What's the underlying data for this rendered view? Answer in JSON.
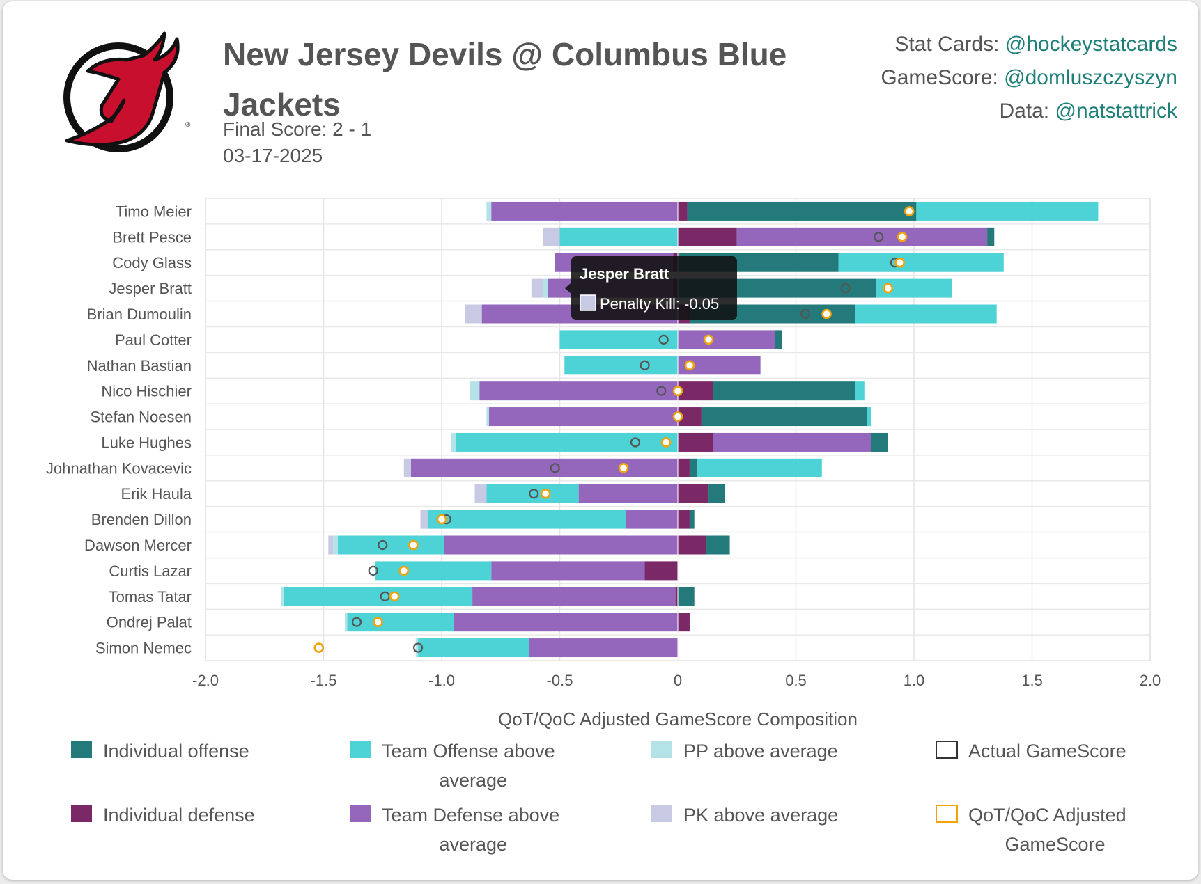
{
  "header": {
    "title": "New Jersey Devils @ Columbus Blue Jackets",
    "final_score": "Final Score: 2 - 1",
    "date": "03-17-2025"
  },
  "credits": [
    {
      "label": "Stat Cards: ",
      "handle": "@hockeystatcards"
    },
    {
      "label": "GameScore: ",
      "handle": "@domluszczyszyn"
    },
    {
      "label": "Data: ",
      "handle": "@natstattrick"
    }
  ],
  "tooltip": {
    "player": "Jesper Bratt",
    "text": "Penalty Kill: -0.05"
  },
  "colors": {
    "individual_offense": "#247a7b",
    "team_offense": "#4dd3d6",
    "pp": "#b3e3e6",
    "individual_defense": "#7b2867",
    "team_defense": "#9467bd",
    "pk": "#c8c9e3",
    "actual_marker": "#555555",
    "adjusted_marker": "#f0a30a",
    "handle": "#1e7f78"
  },
  "chart_data": {
    "type": "bar",
    "orientation": "horizontal",
    "stacked": true,
    "xlabel": "QoT/QoC Adjusted GameScore Composition",
    "xlim": [
      -2.0,
      2.0
    ],
    "xticks": [
      -2.0,
      -1.5,
      -1.0,
      -0.5,
      0,
      0.5,
      1.0,
      1.5,
      2.0
    ],
    "xtick_labels": [
      "-2.0",
      "-1.5",
      "-1.0",
      "-0.5",
      "0",
      "0.5",
      "1.0",
      "1.5",
      "2.0"
    ],
    "grid": true,
    "legend_position": "bottom",
    "categories": [
      "Timo Meier",
      "Brett Pesce",
      "Cody Glass",
      "Jesper Bratt",
      "Brian Dumoulin",
      "Paul Cotter",
      "Nathan Bastian",
      "Nico Hischier",
      "Stefan Noesen",
      "Luke Hughes",
      "Johnathan Kovacevic",
      "Erik Haula",
      "Brenden Dillon",
      "Dawson Mercer",
      "Curtis Lazar",
      "Tomas Tatar",
      "Ondrej Palat",
      "Simon Nemec"
    ],
    "legend": [
      {
        "key": "individual_offense",
        "label": "Individual offense",
        "kind": "bar"
      },
      {
        "key": "team_offense",
        "label": "Team Offense above average",
        "kind": "bar"
      },
      {
        "key": "pp",
        "label": "PP above average",
        "kind": "bar"
      },
      {
        "key": "actual",
        "label": "Actual GameScore",
        "kind": "marker"
      },
      {
        "key": "individual_defense",
        "label": "Individual defense",
        "kind": "bar"
      },
      {
        "key": "team_defense",
        "label": "Team Defense above average",
        "kind": "bar"
      },
      {
        "key": "pk",
        "label": "PK above average",
        "kind": "bar"
      },
      {
        "key": "adjusted",
        "label": "QoT/QoC Adjusted GameScore",
        "kind": "marker"
      }
    ],
    "series": [
      {
        "key": "individual_offense",
        "name": "Individual offense",
        "values": [
          0.97,
          0.03,
          0.68,
          0.84,
          0.7,
          0.03,
          0,
          0.6,
          0.7,
          0.07,
          0.03,
          0.07,
          0.02,
          0.1,
          0,
          0.07,
          0,
          0
        ]
      },
      {
        "key": "team_offense",
        "name": "Team Offense above average",
        "values": [
          0.77,
          -0.5,
          0.7,
          0.32,
          0.6,
          -0.5,
          -0.48,
          0.04,
          0.02,
          -0.94,
          0.53,
          -0.39,
          -0.84,
          -0.45,
          -0.49,
          -0.8,
          -0.45,
          -0.47
        ]
      },
      {
        "key": "pp",
        "name": "PP above average",
        "values": [
          -0.02,
          0,
          0,
          -0.02,
          0,
          0,
          0,
          -0.04,
          -0.01,
          -0.02,
          0,
          0,
          0,
          -0.02,
          0,
          -0.01,
          -0.01,
          -0.01
        ]
      },
      {
        "key": "individual_defense",
        "name": "Individual defense",
        "values": [
          0.04,
          0.25,
          -0.02,
          -0.02,
          0.05,
          0,
          0,
          0.15,
          0.1,
          0.15,
          0.05,
          0.13,
          0.05,
          0.12,
          -0.14,
          -0.01,
          0.05,
          0
        ]
      },
      {
        "key": "team_defense",
        "name": "Team Defense above average",
        "values": [
          -0.79,
          1.06,
          -0.5,
          -0.53,
          -0.83,
          0.41,
          0.35,
          -0.84,
          -0.8,
          0.67,
          -1.13,
          -0.42,
          -0.22,
          -0.99,
          -0.65,
          -0.86,
          -0.95,
          -0.63
        ]
      },
      {
        "key": "pk",
        "name": "PK above average",
        "values": [
          0,
          -0.07,
          0,
          -0.05,
          -0.07,
          0,
          0,
          0,
          0,
          0,
          -0.03,
          -0.05,
          -0.03,
          -0.02,
          0,
          0,
          0,
          0
        ]
      }
    ],
    "actual_gamescore": [
      0.98,
      0.85,
      0.92,
      0.71,
      0.54,
      -0.06,
      -0.14,
      -0.07,
      0,
      -0.18,
      -0.52,
      -0.61,
      -0.98,
      -1.25,
      -1.29,
      -1.24,
      -1.36,
      -1.1
    ],
    "adjusted_gamescore": [
      0.98,
      0.95,
      0.94,
      0.89,
      0.63,
      0.13,
      0.05,
      0,
      0,
      -0.05,
      -0.23,
      -0.56,
      -1.0,
      -1.12,
      -1.16,
      -1.2,
      -1.27,
      -1.52
    ]
  }
}
